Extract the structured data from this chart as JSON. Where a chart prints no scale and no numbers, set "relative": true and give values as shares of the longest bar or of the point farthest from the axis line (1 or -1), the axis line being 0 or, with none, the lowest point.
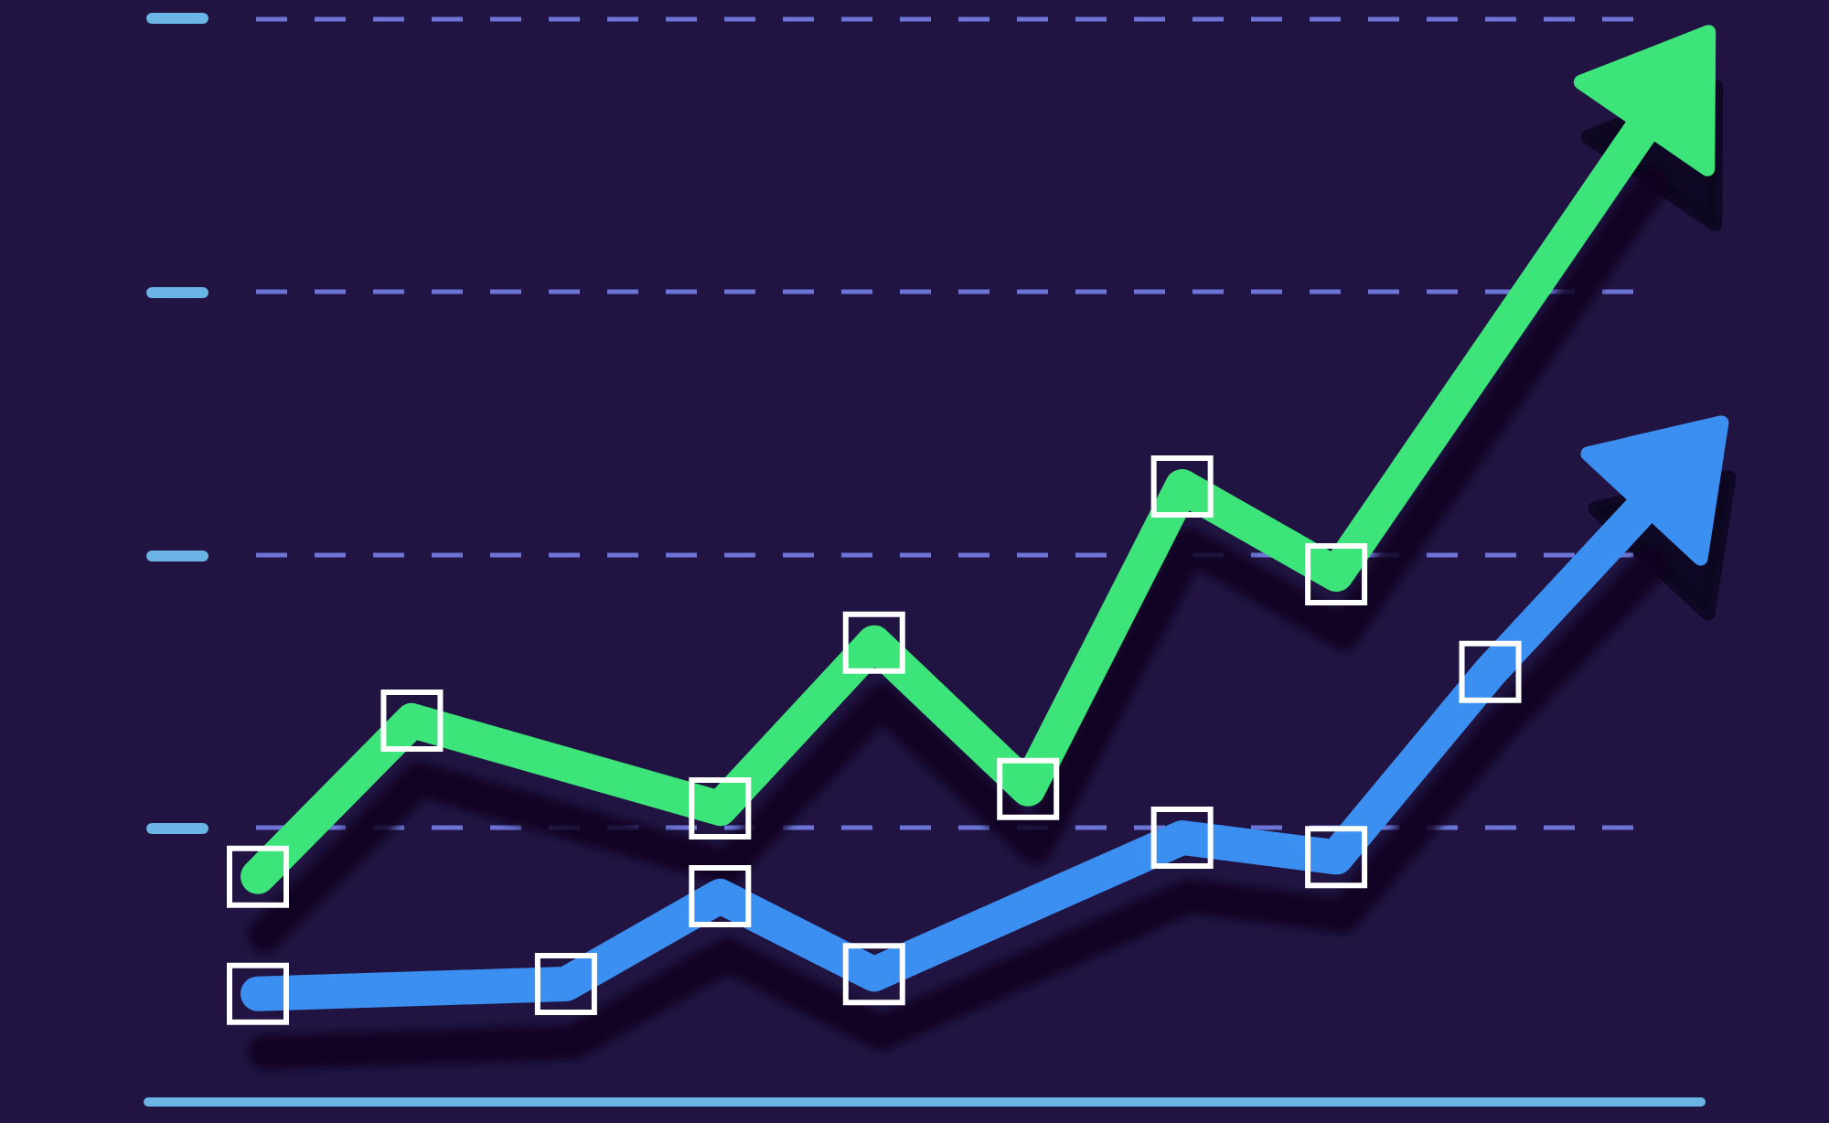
{
  "chart_data": {
    "type": "line",
    "relative": true,
    "categories": [
      null,
      null,
      null,
      null,
      null,
      null,
      null,
      null,
      null,
      null
    ],
    "series": [
      {
        "color": "#3ce47a",
        "values": [
          0.23,
          0.39,
          null,
          0.3,
          0.47,
          0.32,
          0.63,
          0.54,
          null,
          1
        ]
      },
      {
        "color": "#3b8ff0",
        "values": [
          0.11,
          null,
          0.12,
          0.21,
          0.13,
          null,
          0.27,
          0.25,
          0.44,
          0.61
        ]
      }
    ],
    "ref_lines": [
      {
        "axis": "y",
        "value": 0.28,
        "line_style": "dashed",
        "color": "#6c75d6"
      },
      {
        "axis": "y",
        "value": 0.56,
        "line_style": "dashed",
        "color": "#6c75d6"
      },
      {
        "axis": "y",
        "value": 0.83,
        "line_style": "dashed",
        "color": "#6c75d6"
      },
      {
        "axis": "y",
        "value": 1.11,
        "line_style": "dashed",
        "color": "#6c75d6"
      }
    ],
    "marker": "square",
    "line_style": "solid"
  }
}
